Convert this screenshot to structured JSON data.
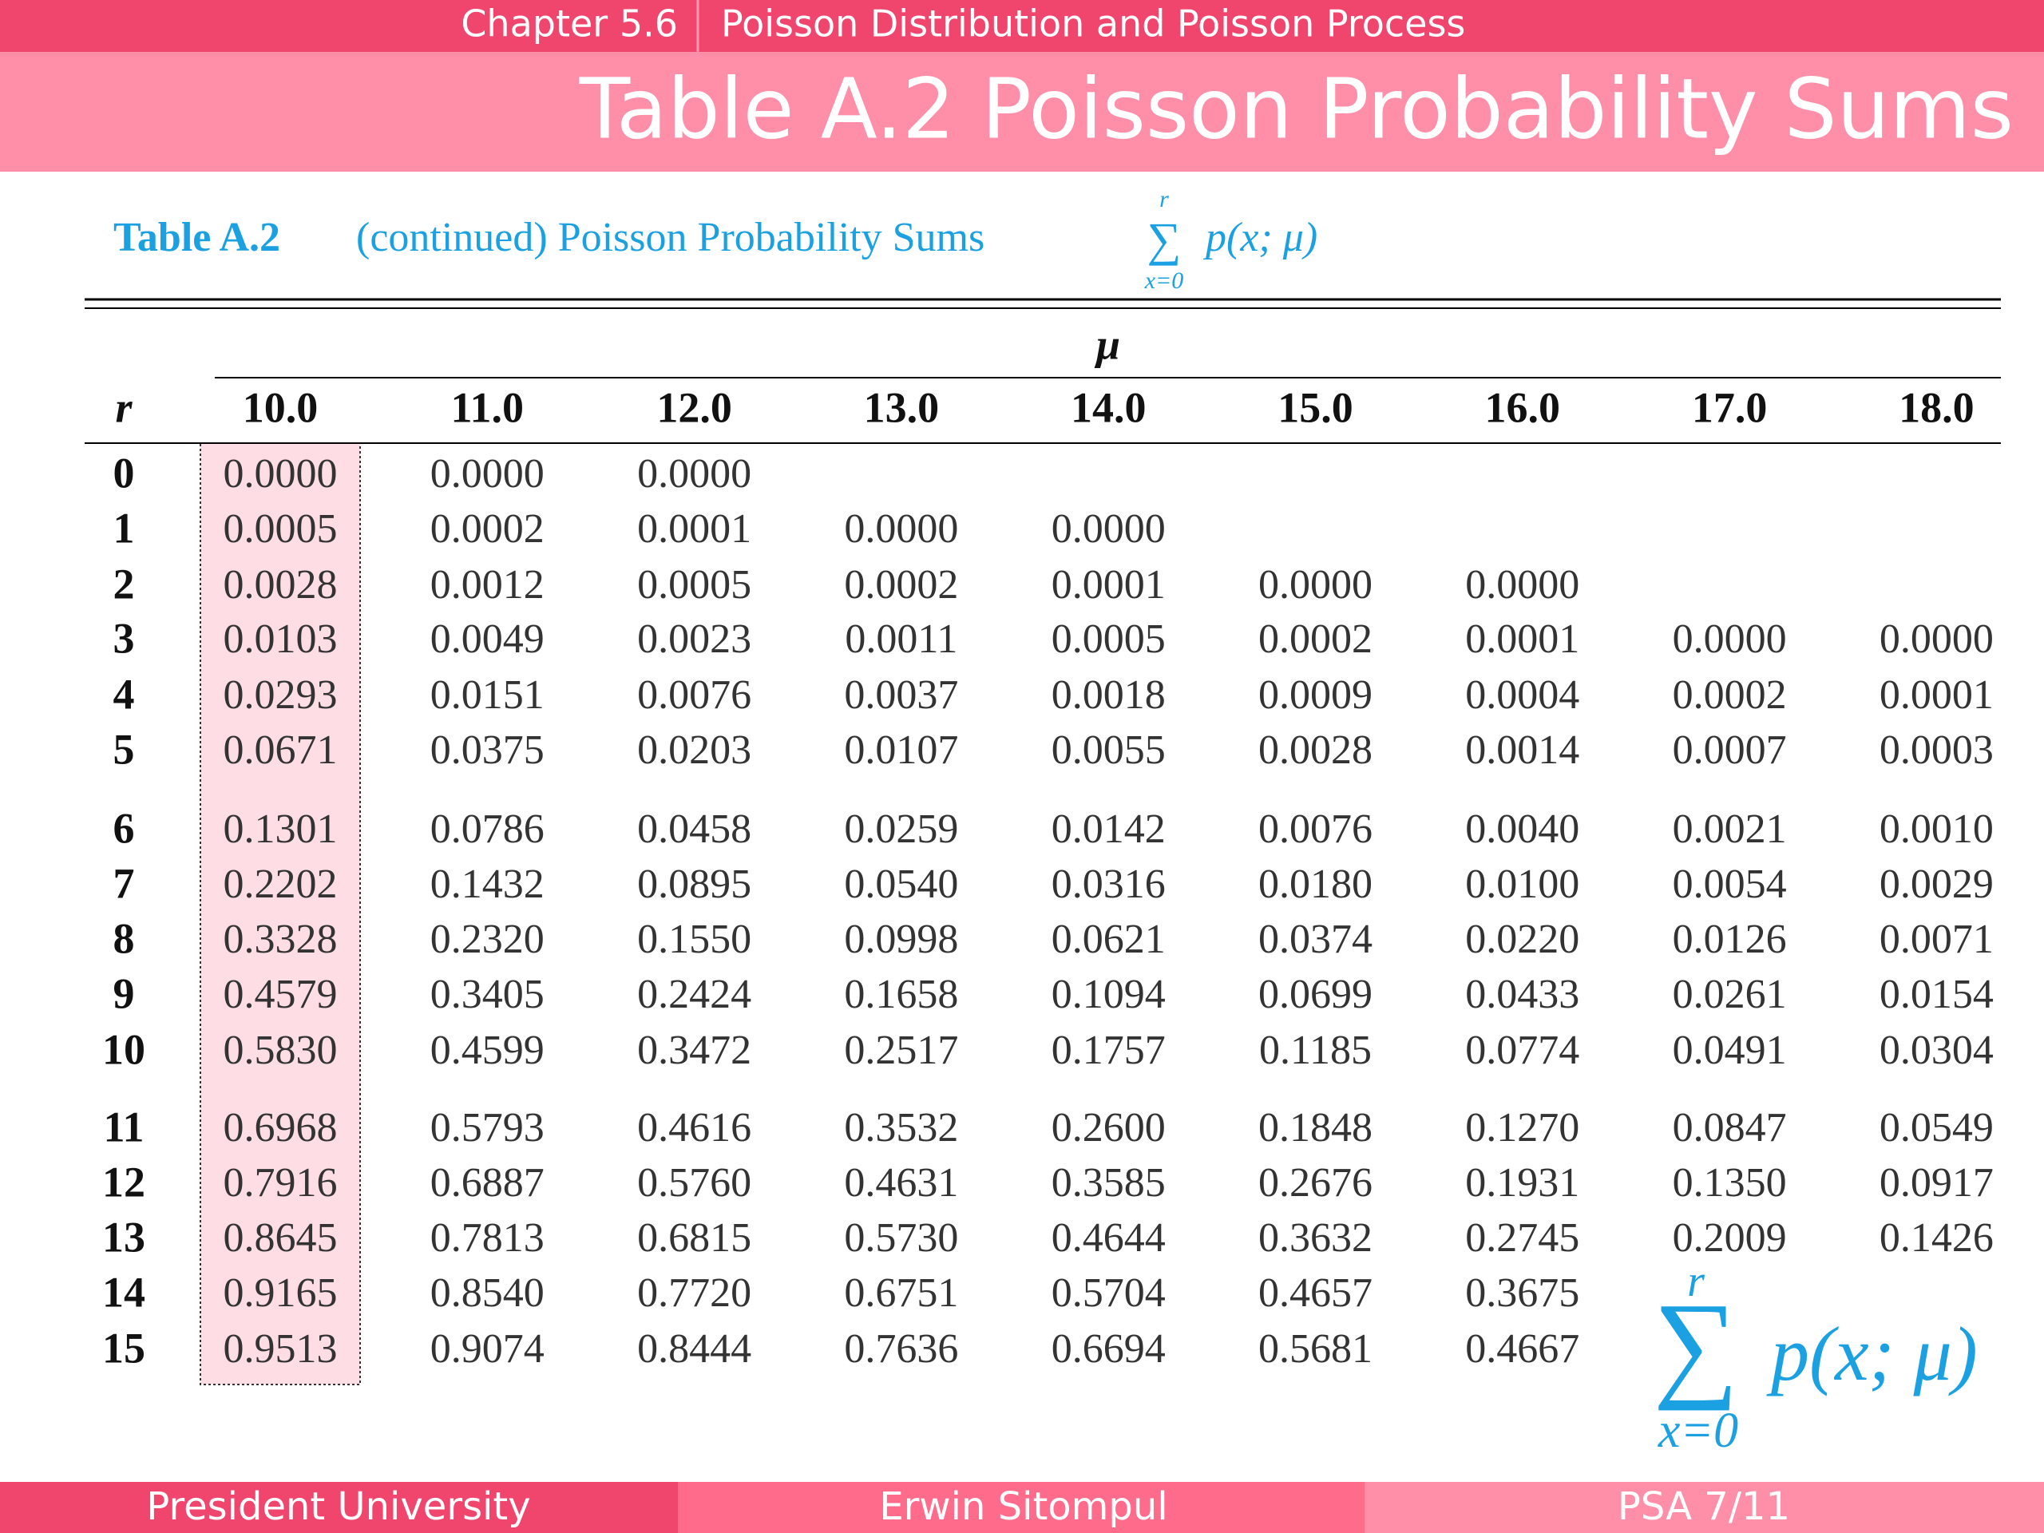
{
  "header": {
    "chapter": "Chapter 5.6",
    "topic": "Poisson Distribution and Poisson Process"
  },
  "title": "Table A.2 Poisson Probability Sums",
  "caption": {
    "label": "Table A.2",
    "text": "(continued) Poisson Probability Sums",
    "sum": "∑",
    "upper": "r",
    "lower": "x=0",
    "term": "p(x; μ)"
  },
  "table": {
    "group_header": "μ",
    "row_header": "r",
    "columns": [
      "10.0",
      "11.0",
      "12.0",
      "13.0",
      "14.0",
      "15.0",
      "16.0",
      "17.0",
      "18.0"
    ],
    "rows": [
      [
        "0",
        "0.0000",
        "0.0000",
        "0.0000"
      ],
      [
        "1",
        "0.0005",
        "0.0002",
        "0.0001",
        "0.0000",
        "0.0000"
      ],
      [
        "2",
        "0.0028",
        "0.0012",
        "0.0005",
        "0.0002",
        "0.0001",
        "0.0000",
        "0.0000"
      ],
      [
        "3",
        "0.0103",
        "0.0049",
        "0.0023",
        "0.0011",
        "0.0005",
        "0.0002",
        "0.0001",
        "0.0000",
        "0.0000"
      ],
      [
        "4",
        "0.0293",
        "0.0151",
        "0.0076",
        "0.0037",
        "0.0018",
        "0.0009",
        "0.0004",
        "0.0002",
        "0.0001"
      ],
      [
        "5",
        "0.0671",
        "0.0375",
        "0.0203",
        "0.0107",
        "0.0055",
        "0.0028",
        "0.0014",
        "0.0007",
        "0.0003"
      ],
      [
        "6",
        "0.1301",
        "0.0786",
        "0.0458",
        "0.0259",
        "0.0142",
        "0.0076",
        "0.0040",
        "0.0021",
        "0.0010"
      ],
      [
        "7",
        "0.2202",
        "0.1432",
        "0.0895",
        "0.0540",
        "0.0316",
        "0.0180",
        "0.0100",
        "0.0054",
        "0.0029"
      ],
      [
        "8",
        "0.3328",
        "0.2320",
        "0.1550",
        "0.0998",
        "0.0621",
        "0.0374",
        "0.0220",
        "0.0126",
        "0.0071"
      ],
      [
        "9",
        "0.4579",
        "0.3405",
        "0.2424",
        "0.1658",
        "0.1094",
        "0.0699",
        "0.0433",
        "0.0261",
        "0.0154"
      ],
      [
        "10",
        "0.5830",
        "0.4599",
        "0.3472",
        "0.2517",
        "0.1757",
        "0.1185",
        "0.0774",
        "0.0491",
        "0.0304"
      ],
      [
        "11",
        "0.6968",
        "0.5793",
        "0.4616",
        "0.3532",
        "0.2600",
        "0.1848",
        "0.1270",
        "0.0847",
        "0.0549"
      ],
      [
        "12",
        "0.7916",
        "0.6887",
        "0.5760",
        "0.4631",
        "0.3585",
        "0.2676",
        "0.1931",
        "0.1350",
        "0.0917"
      ],
      [
        "13",
        "0.8645",
        "0.7813",
        "0.6815",
        "0.5730",
        "0.4644",
        "0.3632",
        "0.2745",
        "0.2009",
        "0.1426"
      ],
      [
        "14",
        "0.9165",
        "0.8540",
        "0.7720",
        "0.6751",
        "0.5704",
        "0.4657",
        "0.3675"
      ],
      [
        "15",
        "0.9513",
        "0.9074",
        "0.8444",
        "0.7636",
        "0.6694",
        "0.5681",
        "0.4667"
      ]
    ]
  },
  "side_formula": {
    "sum": "∑",
    "upper": "r",
    "lower": "x=0",
    "term": "p(x; μ)"
  },
  "footer": {
    "left": "President University",
    "center": "Erwin Sitompul",
    "right": "PSA 7/11"
  }
}
